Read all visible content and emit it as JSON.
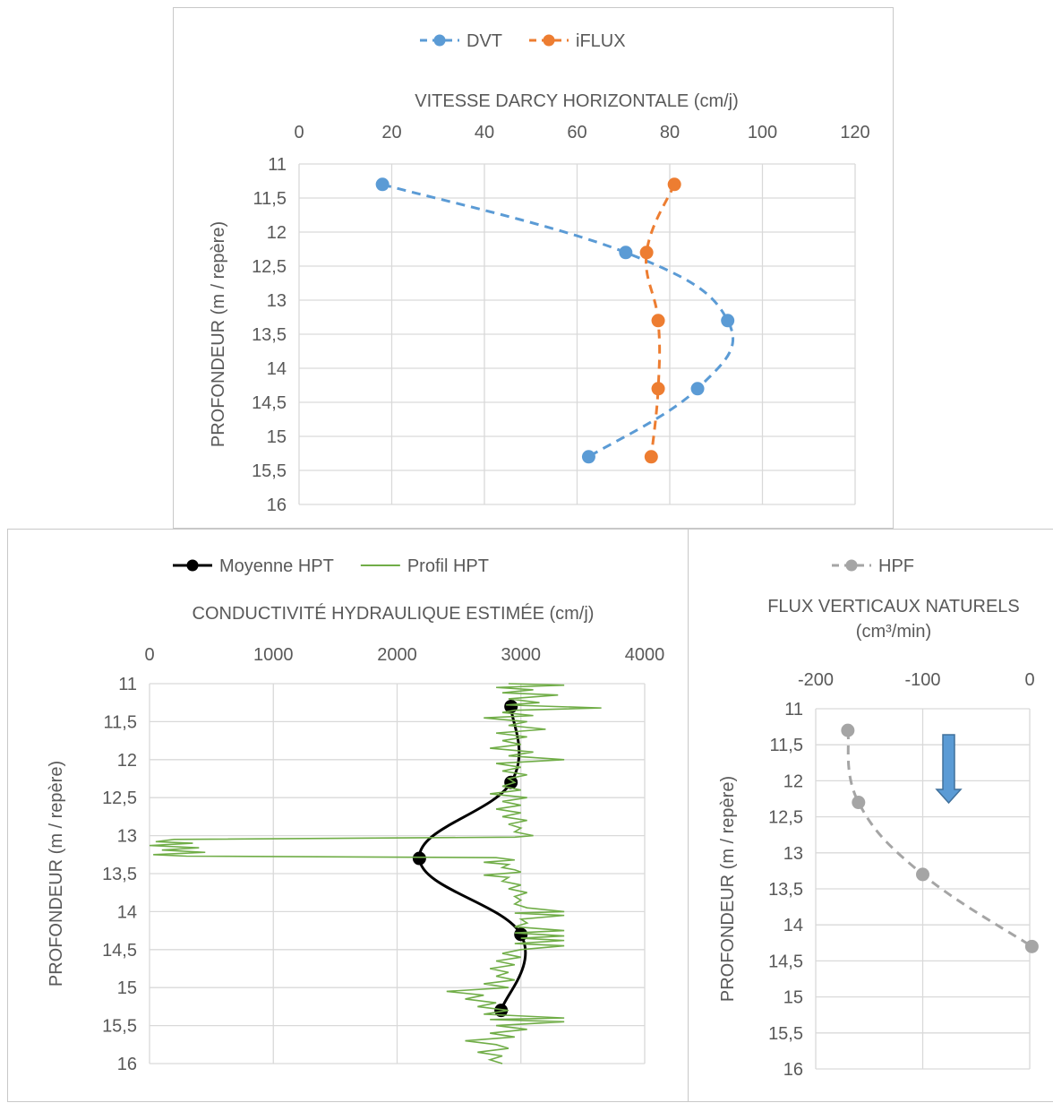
{
  "chart_data": [
    {
      "type": "line",
      "title": "VITESSE DARCY HORIZONTALE (cm/j)",
      "xlabel": "VITESSE DARCY HORIZONTALE (cm/j)",
      "ylabel": "PROFONDEUR (m / repère)",
      "xlim": [
        0,
        120
      ],
      "ylim": [
        16,
        11
      ],
      "x_ticks": [
        "0",
        "20",
        "40",
        "60",
        "80",
        "100",
        "120"
      ],
      "y_ticks": [
        "11",
        "11,5",
        "12",
        "12,5",
        "13",
        "13,5",
        "14",
        "14,5",
        "15",
        "15,5",
        "16"
      ],
      "legend": "top",
      "grid": true,
      "series": [
        {
          "name": "DVT",
          "color": "#5B9BD5",
          "style": "dashed-smooth-markers",
          "points": [
            [
              18,
              11.3
            ],
            [
              70.5,
              12.3
            ],
            [
              92.5,
              13.3
            ],
            [
              86,
              14.3
            ],
            [
              62.5,
              15.3
            ]
          ]
        },
        {
          "name": "iFLUX",
          "color": "#ED7D31",
          "style": "dashed-smooth-markers",
          "points": [
            [
              81,
              11.3
            ],
            [
              75,
              12.3
            ],
            [
              77.5,
              13.3
            ],
            [
              77.5,
              14.3
            ],
            [
              76,
              15.3
            ]
          ]
        }
      ]
    },
    {
      "type": "line",
      "title": "CONDUCTIVITÉ HYDRAULIQUE ESTIMÉE (cm/j)",
      "xlabel": "CONDUCTIVITÉ HYDRAULIQUE ESTIMÉE (cm/j)",
      "ylabel": "PROFONDEUR (m / repère)",
      "xlim": [
        0,
        4000
      ],
      "ylim": [
        16,
        11
      ],
      "x_ticks": [
        "0",
        "1000",
        "2000",
        "3000",
        "4000"
      ],
      "y_ticks": [
        "11",
        "11,5",
        "12",
        "12,5",
        "13",
        "13,5",
        "14",
        "14,5",
        "15",
        "15,5",
        "16"
      ],
      "legend": "top",
      "grid": true,
      "series": [
        {
          "name": "Moyenne HPT",
          "color": "#000000",
          "style": "solid-smooth-markers",
          "points": [
            [
              2920,
              11.3
            ],
            [
              2920,
              12.3
            ],
            [
              2180,
              13.3
            ],
            [
              3000,
              14.3
            ],
            [
              2840,
              15.3
            ]
          ]
        },
        {
          "name": "Profil HPT",
          "color": "#70AD47",
          "style": "thin-line",
          "points": [
            [
              2900,
              11.0
            ],
            [
              3350,
              11.02
            ],
            [
              2800,
              11.05
            ],
            [
              3100,
              11.08
            ],
            [
              2850,
              11.12
            ],
            [
              3300,
              11.15
            ],
            [
              2900,
              11.2
            ],
            [
              3150,
              11.25
            ],
            [
              2880,
              11.28
            ],
            [
              3650,
              11.32
            ],
            [
              2950,
              11.35
            ],
            [
              2850,
              11.38
            ],
            [
              3100,
              11.42
            ],
            [
              2700,
              11.45
            ],
            [
              3050,
              11.5
            ],
            [
              2900,
              11.55
            ],
            [
              3200,
              11.6
            ],
            [
              2800,
              11.65
            ],
            [
              3050,
              11.7
            ],
            [
              2850,
              11.75
            ],
            [
              3000,
              11.8
            ],
            [
              2750,
              11.85
            ],
            [
              3100,
              11.9
            ],
            [
              2900,
              11.95
            ],
            [
              3350,
              12.0
            ],
            [
              2800,
              12.05
            ],
            [
              3000,
              12.1
            ],
            [
              2850,
              12.15
            ],
            [
              3050,
              12.2
            ],
            [
              2900,
              12.25
            ],
            [
              2950,
              12.3
            ],
            [
              2850,
              12.35
            ],
            [
              3000,
              12.4
            ],
            [
              2750,
              12.45
            ],
            [
              3050,
              12.5
            ],
            [
              2850,
              12.55
            ],
            [
              3000,
              12.6
            ],
            [
              2800,
              12.65
            ],
            [
              3000,
              12.7
            ],
            [
              2850,
              12.75
            ],
            [
              3050,
              12.8
            ],
            [
              2900,
              12.85
            ],
            [
              3000,
              12.9
            ],
            [
              2950,
              12.95
            ],
            [
              3100,
              13.0
            ],
            [
              2950,
              13.02
            ],
            [
              200,
              13.05
            ],
            [
              50,
              13.08
            ],
            [
              350,
              13.1
            ],
            [
              0,
              13.13
            ],
            [
              400,
              13.16
            ],
            [
              100,
              13.19
            ],
            [
              450,
              13.22
            ],
            [
              30,
              13.25
            ],
            [
              300,
              13.27
            ],
            [
              2800,
              13.29
            ],
            [
              2950,
              13.32
            ],
            [
              2700,
              13.35
            ],
            [
              2900,
              13.38
            ],
            [
              2850,
              13.42
            ],
            [
              2950,
              13.45
            ],
            [
              3000,
              13.48
            ],
            [
              2700,
              13.52
            ],
            [
              2900,
              13.55
            ],
            [
              2850,
              13.6
            ],
            [
              3000,
              13.65
            ],
            [
              2900,
              13.7
            ],
            [
              3050,
              13.75
            ],
            [
              2950,
              13.8
            ],
            [
              3000,
              13.85
            ],
            [
              2950,
              13.9
            ],
            [
              3050,
              13.95
            ],
            [
              3350,
              14.0
            ],
            [
              2950,
              14.02
            ],
            [
              3350,
              14.05
            ],
            [
              3000,
              14.1
            ],
            [
              3050,
              14.15
            ],
            [
              2950,
              14.2
            ],
            [
              3350,
              14.25
            ],
            [
              2950,
              14.28
            ],
            [
              3350,
              14.32
            ],
            [
              3000,
              14.35
            ],
            [
              3350,
              14.38
            ],
            [
              2950,
              14.42
            ],
            [
              3350,
              14.45
            ],
            [
              3000,
              14.5
            ],
            [
              2850,
              14.55
            ],
            [
              3000,
              14.6
            ],
            [
              2800,
              14.65
            ],
            [
              2950,
              14.7
            ],
            [
              2750,
              14.75
            ],
            [
              2900,
              14.8
            ],
            [
              2800,
              14.85
            ],
            [
              2950,
              14.9
            ],
            [
              2700,
              14.95
            ],
            [
              2900,
              15.0
            ],
            [
              2400,
              15.05
            ],
            [
              2700,
              15.1
            ],
            [
              2550,
              15.15
            ],
            [
              2800,
              15.2
            ],
            [
              2650,
              15.25
            ],
            [
              2900,
              15.3
            ],
            [
              2700,
              15.35
            ],
            [
              3350,
              15.4
            ],
            [
              2750,
              15.42
            ],
            [
              3350,
              15.45
            ],
            [
              2800,
              15.5
            ],
            [
              3050,
              15.55
            ],
            [
              2750,
              15.6
            ],
            [
              2950,
              15.65
            ],
            [
              2550,
              15.7
            ],
            [
              2800,
              15.75
            ],
            [
              2900,
              15.8
            ],
            [
              2650,
              15.85
            ],
            [
              2850,
              15.9
            ],
            [
              2750,
              15.95
            ],
            [
              2850,
              16.0
            ]
          ]
        }
      ]
    },
    {
      "type": "line",
      "title": "FLUX VERTICAUX NATURELS (cm³/min)",
      "title_line1": "FLUX VERTICAUX NATURELS",
      "title_line2": "(cm³/min)",
      "xlabel": "FLUX VERTICAUX NATURELS (cm³/min)",
      "ylabel": "PROFONDEUR (m / repère)",
      "xlim": [
        -200,
        0
      ],
      "ylim": [
        16,
        11
      ],
      "x_ticks": [
        "-200",
        "-100",
        "0"
      ],
      "y_ticks": [
        "11",
        "11,5",
        "12",
        "12,5",
        "13",
        "13,5",
        "14",
        "14,5",
        "15",
        "15,5",
        "16"
      ],
      "legend": "top",
      "grid": true,
      "annotation": "downward-arrow",
      "series": [
        {
          "name": "HPF",
          "color": "#A5A5A5",
          "style": "dashed-smooth-markers",
          "points": [
            [
              -170,
              11.3
            ],
            [
              -160,
              12.3
            ],
            [
              -100,
              13.3
            ],
            [
              2,
              14.3
            ]
          ]
        }
      ]
    }
  ],
  "colors": {
    "gridline": "#d9d9d9",
    "axis_text": "#595959",
    "arrow_fill": "#5B9BD5",
    "arrow_stroke": "#41719C"
  }
}
